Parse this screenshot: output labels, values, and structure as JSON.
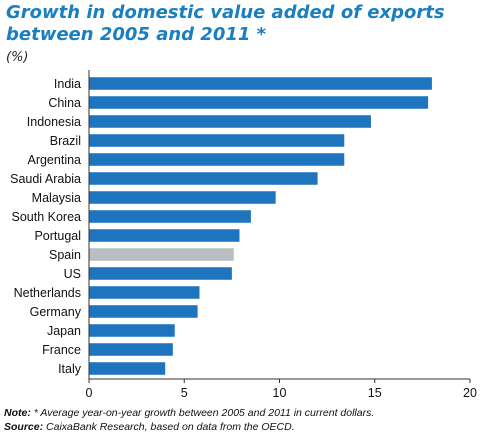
{
  "title": "Growth in domestic value added of exports between 2005 and 2011 *",
  "unit_label": "(%)",
  "colors": {
    "title": "#1a7fc1",
    "bar": "#1f75bd",
    "highlight": "#b9bec3",
    "axis": "#333333"
  },
  "note_label": "Note:",
  "note_text": "* Average year-on-year growth between 2005 and 2011 in current dollars.",
  "source_label": "Source:",
  "source_text": "CaixaBank Research, based on data from the OECD.",
  "chart_data": {
    "type": "bar",
    "orientation": "horizontal",
    "categories": [
      "India",
      "China",
      "Indonesia",
      "Brazil",
      "Argentina",
      "Saudi Arabia",
      "Malaysia",
      "South Korea",
      "Portugal",
      "Spain",
      "US",
      "Netherlands",
      "Germany",
      "Japan",
      "France",
      "Italy"
    ],
    "values": [
      18.0,
      17.8,
      14.8,
      13.4,
      13.4,
      12.0,
      9.8,
      8.5,
      7.9,
      7.6,
      7.5,
      5.8,
      5.7,
      4.5,
      4.4,
      4.0
    ],
    "highlight": "Spain",
    "xlim": [
      0,
      20
    ],
    "xticks": [
      0,
      5,
      10,
      15,
      20
    ],
    "grid": false
  }
}
